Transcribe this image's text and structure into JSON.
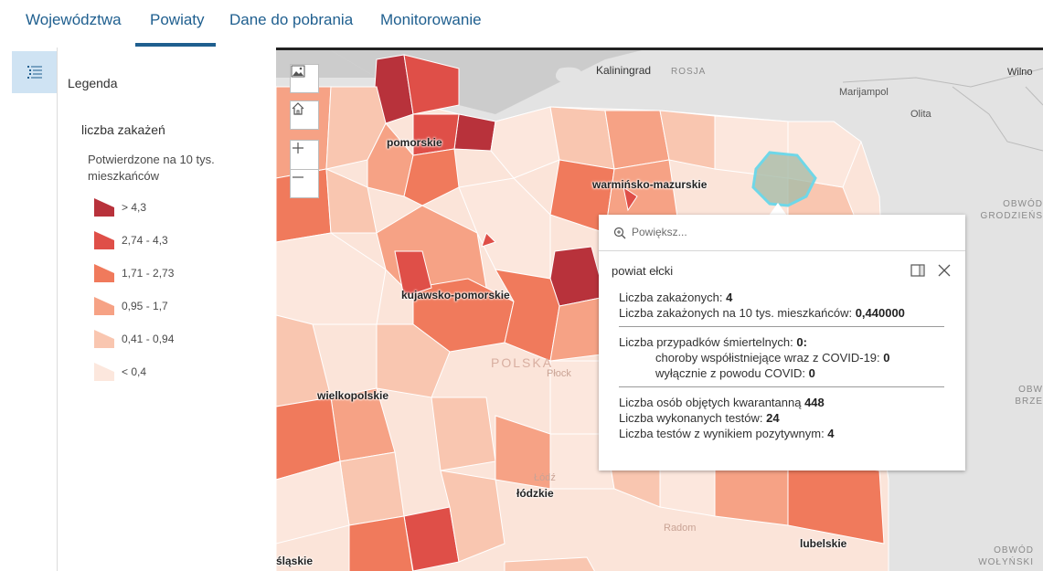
{
  "tabs": [
    {
      "label": "Województwa"
    },
    {
      "label": "Powiaty"
    },
    {
      "label": "Dane do pobrania"
    },
    {
      "label": "Monitorowanie"
    }
  ],
  "active_tab": "Powiaty",
  "legend": {
    "title": "Legenda",
    "layer": "liczba zakażeń",
    "field": "Potwierdzone na 10 tys. mieszkańców",
    "classes": [
      {
        "label": "> 4,3",
        "color": "#b8323b"
      },
      {
        "label": "2,74 - 4,3",
        "color": "#df4f48"
      },
      {
        "label": "1,71 - 2,73",
        "color": "#f07a5c"
      },
      {
        "label": "0,95 - 1,7",
        "color": "#f6a285"
      },
      {
        "label": "0,41 - 0,94",
        "color": "#f9c6b0"
      },
      {
        "label": "< 0,4",
        "color": "#fce7dd"
      }
    ]
  },
  "map": {
    "labels": {
      "pomorskie": "pomorskie",
      "warminsko": "warmińsko-mazurskie",
      "kujawsko": "kujawsko-pomorskie",
      "wielkopolskie": "wielkopolskie",
      "lodzkie": "łódzkie",
      "lubelskie": "lubelskie",
      "slaskie": "śląskie"
    },
    "places": {
      "kaliningrad": "Kaliningrad",
      "rosja": "ROSJA",
      "wilno": "Wilno",
      "marijampol": "Marijampol",
      "olita": "Olita",
      "obwod_grodz": "OBWÓD\nGRODZIEŃS",
      "obwod_brze": "OBW\nBRZE",
      "obwod_wol": "OBWÓD\nWOŁYŃSKI",
      "plock": "Płock",
      "lodz": "Łódź",
      "radom": "Radom",
      "polska": "POLSKA"
    }
  },
  "popup": {
    "search_placeholder": "Powiększ...",
    "title": "powiat ełcki",
    "zakazonych_label": "Liczba zakażonych: ",
    "zakazonych_value": "4",
    "na10_label": "Liczba zakażonych na 10 tys. mieszkańców: ",
    "na10_value": "0,440000",
    "smierc_label": "Liczba przypadków śmiertelnych: ",
    "smierc_value": "0:",
    "choroby_label": "choroby współistniejące wraz z COVID-19: ",
    "choroby_value": "0",
    "covid_label": "wyłącznie z powodu COVID: ",
    "covid_value": "0",
    "kwarantanna_label": "Liczba osób objętych kwarantanną ",
    "kwarantanna_value": "448",
    "testy_label": "Liczba wykonanych testów: ",
    "testy_value": "24",
    "pozytywne_label": "Liczba testów z wynikiem pozytywnym: ",
    "pozytywne_value": "4"
  }
}
